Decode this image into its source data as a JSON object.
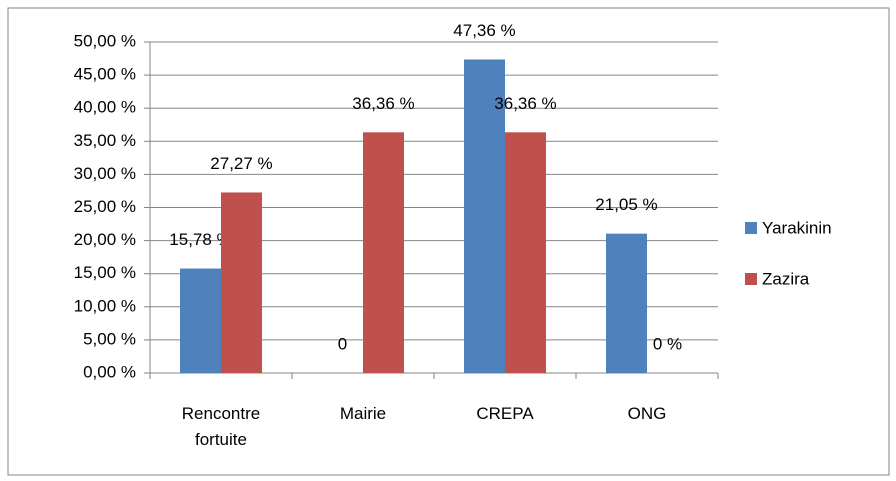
{
  "chart_data": {
    "type": "bar",
    "categories": [
      "Rencontre fortuite",
      "Mairie",
      "CREPA",
      "ONG"
    ],
    "series": [
      {
        "name": "Yarakinin",
        "color": "#4f81bd",
        "values": [
          15.78,
          0,
          47.36,
          21.05
        ],
        "value_labels": [
          "15,78 %",
          "0",
          "47,36 %",
          "21,05 %"
        ]
      },
      {
        "name": "Zazira",
        "color": "#c0504d",
        "values": [
          27.27,
          36.36,
          36.36,
          0
        ],
        "value_labels": [
          "27,27 %",
          "36,36 %",
          "36,36 %",
          "0 %"
        ]
      }
    ],
    "ylim": [
      0,
      50
    ],
    "yticks": [
      {
        "value": 0,
        "label": "0,00 %"
      },
      {
        "value": 5,
        "label": "5,00 %"
      },
      {
        "value": 10,
        "label": "10,00 %"
      },
      {
        "value": 15,
        "label": "15,00 %"
      },
      {
        "value": 20,
        "label": "20,00 %"
      },
      {
        "value": 25,
        "label": "25,00 %"
      },
      {
        "value": 30,
        "label": "30,00 %"
      },
      {
        "value": 35,
        "label": "35,00 %"
      },
      {
        "value": 40,
        "label": "40,00 %"
      },
      {
        "value": 45,
        "label": "45,00 %"
      },
      {
        "value": 50,
        "label": "50,00 %"
      }
    ],
    "grid": true,
    "legend": "right"
  }
}
